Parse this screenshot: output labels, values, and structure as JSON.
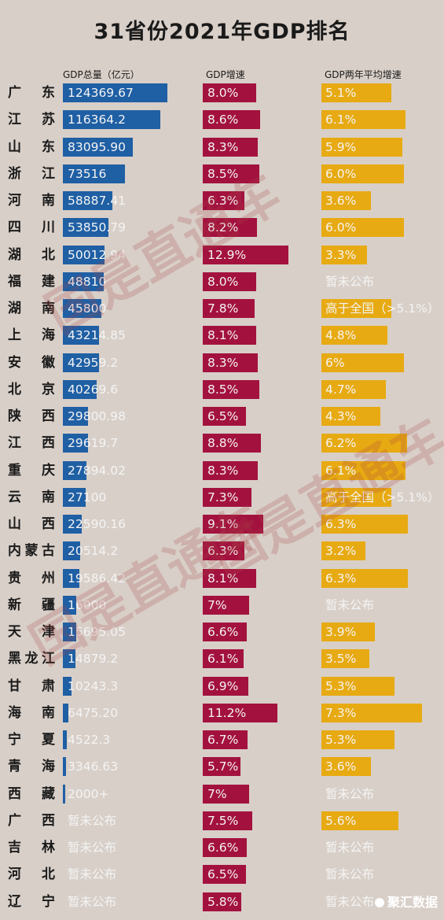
{
  "chart_data": {
    "type": "bar",
    "title": "31省份2021年GDP排名",
    "columns": {
      "gdp": "GDP总量（亿元）",
      "growth": "GDP增速",
      "avg": "GDP两年平均增速"
    },
    "colors": {
      "gdp": "#1f5fa4",
      "growth": "#a3123f",
      "avg": "#e7aa12"
    },
    "rows": [
      {
        "name": "广东",
        "gdp": 124369.67,
        "gdp_label": "124369.67",
        "growth": 8.0,
        "growth_label": "8.0%",
        "avg": 5.1,
        "avg_label": "5.1%"
      },
      {
        "name": "江苏",
        "gdp": 116364.2,
        "gdp_label": "116364.2",
        "growth": 8.6,
        "growth_label": "8.6%",
        "avg": 6.1,
        "avg_label": "6.1%"
      },
      {
        "name": "山东",
        "gdp": 83095.9,
        "gdp_label": "83095.90",
        "growth": 8.3,
        "growth_label": "8.3%",
        "avg": 5.9,
        "avg_label": "5.9%"
      },
      {
        "name": "浙江",
        "gdp": 73516,
        "gdp_label": "73516",
        "growth": 8.5,
        "growth_label": "8.5%",
        "avg": 6.0,
        "avg_label": "6.0%"
      },
      {
        "name": "河南",
        "gdp": 58887.41,
        "gdp_label": "58887.41",
        "growth": 6.3,
        "growth_label": "6.3%",
        "avg": 3.6,
        "avg_label": "3.6%"
      },
      {
        "name": "四川",
        "gdp": 53850.79,
        "gdp_label": "53850.79",
        "growth": 8.2,
        "growth_label": "8.2%",
        "avg": 6.0,
        "avg_label": "6.0%"
      },
      {
        "name": "湖北",
        "gdp": 50012.94,
        "gdp_label": "50012.94",
        "growth": 12.9,
        "growth_label": "12.9%",
        "avg": 3.3,
        "avg_label": "3.3%"
      },
      {
        "name": "福建",
        "gdp": 48810,
        "gdp_label": "48810",
        "growth": 8.0,
        "growth_label": "8.0%",
        "avg": null,
        "avg_label": "暂未公布"
      },
      {
        "name": "湖南",
        "gdp": 45800,
        "gdp_label": "45800",
        "growth": 7.8,
        "growth_label": "7.8%",
        "avg": 5.1,
        "avg_label": "高于全国（>5.1%）"
      },
      {
        "name": "上海",
        "gdp": 43214.85,
        "gdp_label": "43214.85",
        "growth": 8.1,
        "growth_label": "8.1%",
        "avg": 4.8,
        "avg_label": "4.8%"
      },
      {
        "name": "安徽",
        "gdp": 42959.2,
        "gdp_label": "42959.2",
        "growth": 8.3,
        "growth_label": "8.3%",
        "avg": 6.0,
        "avg_label": "6%"
      },
      {
        "name": "北京",
        "gdp": 40269.6,
        "gdp_label": "40269.6",
        "growth": 8.5,
        "growth_label": "8.5%",
        "avg": 4.7,
        "avg_label": "4.7%"
      },
      {
        "name": "陕西",
        "gdp": 29800.98,
        "gdp_label": "29800.98",
        "growth": 6.5,
        "growth_label": "6.5%",
        "avg": 4.3,
        "avg_label": "4.3%"
      },
      {
        "name": "江西",
        "gdp": 29619.7,
        "gdp_label": "29619.7",
        "growth": 8.8,
        "growth_label": "8.8%",
        "avg": 6.2,
        "avg_label": "6.2%"
      },
      {
        "name": "重庆",
        "gdp": 27894.02,
        "gdp_label": "27894.02",
        "growth": 8.3,
        "growth_label": "8.3%",
        "avg": 6.1,
        "avg_label": "6.1%"
      },
      {
        "name": "云南",
        "gdp": 27100,
        "gdp_label": "27100",
        "growth": 7.3,
        "growth_label": "7.3%",
        "avg": 5.1,
        "avg_label": "高于全国（>5.1%）"
      },
      {
        "name": "山西",
        "gdp": 22590.16,
        "gdp_label": "22590.16",
        "growth": 9.1,
        "growth_label": "9.1%",
        "avg": 6.3,
        "avg_label": "6.3%"
      },
      {
        "name": "内蒙古",
        "gdp": 20514.2,
        "gdp_label": "20514.2",
        "growth": 6.3,
        "growth_label": "6.3%",
        "avg": 3.2,
        "avg_label": "3.2%"
      },
      {
        "name": "贵州",
        "gdp": 19586.42,
        "gdp_label": "19586.42",
        "growth": 8.1,
        "growth_label": "8.1%",
        "avg": 6.3,
        "avg_label": "6.3%"
      },
      {
        "name": "新疆",
        "gdp": 16000,
        "gdp_label": "16000",
        "growth": 7.0,
        "growth_label": "7%",
        "avg": null,
        "avg_label": "暂未公布"
      },
      {
        "name": "天津",
        "gdp": 15695.05,
        "gdp_label": "15695.05",
        "growth": 6.6,
        "growth_label": "6.6%",
        "avg": 3.9,
        "avg_label": "3.9%"
      },
      {
        "name": "黑龙江",
        "gdp": 14879.2,
        "gdp_label": "14879.2",
        "growth": 6.1,
        "growth_label": "6.1%",
        "avg": 3.5,
        "avg_label": "3.5%"
      },
      {
        "name": "甘肃",
        "gdp": 10243.3,
        "gdp_label": "10243.3",
        "growth": 6.9,
        "growth_label": "6.9%",
        "avg": 5.3,
        "avg_label": "5.3%"
      },
      {
        "name": "海南",
        "gdp": 6475.2,
        "gdp_label": "6475.20",
        "growth": 11.2,
        "growth_label": "11.2%",
        "avg": 7.3,
        "avg_label": "7.3%"
      },
      {
        "name": "宁夏",
        "gdp": 4522.3,
        "gdp_label": "4522.3",
        "growth": 6.7,
        "growth_label": "6.7%",
        "avg": 5.3,
        "avg_label": "5.3%"
      },
      {
        "name": "青海",
        "gdp": 3346.63,
        "gdp_label": "3346.63",
        "growth": 5.7,
        "growth_label": "5.7%",
        "avg": 3.6,
        "avg_label": "3.6%"
      },
      {
        "name": "西藏",
        "gdp": 2000,
        "gdp_label": "2000+",
        "growth": 7.0,
        "growth_label": "7%",
        "avg": null,
        "avg_label": "暂未公布"
      },
      {
        "name": "广西",
        "gdp": null,
        "gdp_label": "暂未公布",
        "growth": 7.5,
        "growth_label": "7.5%",
        "avg": 5.6,
        "avg_label": "5.6%"
      },
      {
        "name": "吉林",
        "gdp": null,
        "gdp_label": "暂未公布",
        "growth": 6.6,
        "growth_label": "6.6%",
        "avg": null,
        "avg_label": "暂未公布"
      },
      {
        "name": "河北",
        "gdp": null,
        "gdp_label": "暂未公布",
        "growth": 6.5,
        "growth_label": "6.5%",
        "avg": null,
        "avg_label": "暂未公布"
      },
      {
        "name": "辽宁",
        "gdp": null,
        "gdp_label": "暂未公布",
        "growth": 5.8,
        "growth_label": "5.8%",
        "avg": null,
        "avg_label": "暂未公布"
      }
    ]
  },
  "watermark": "国是直通车",
  "brand": "聚汇数据"
}
